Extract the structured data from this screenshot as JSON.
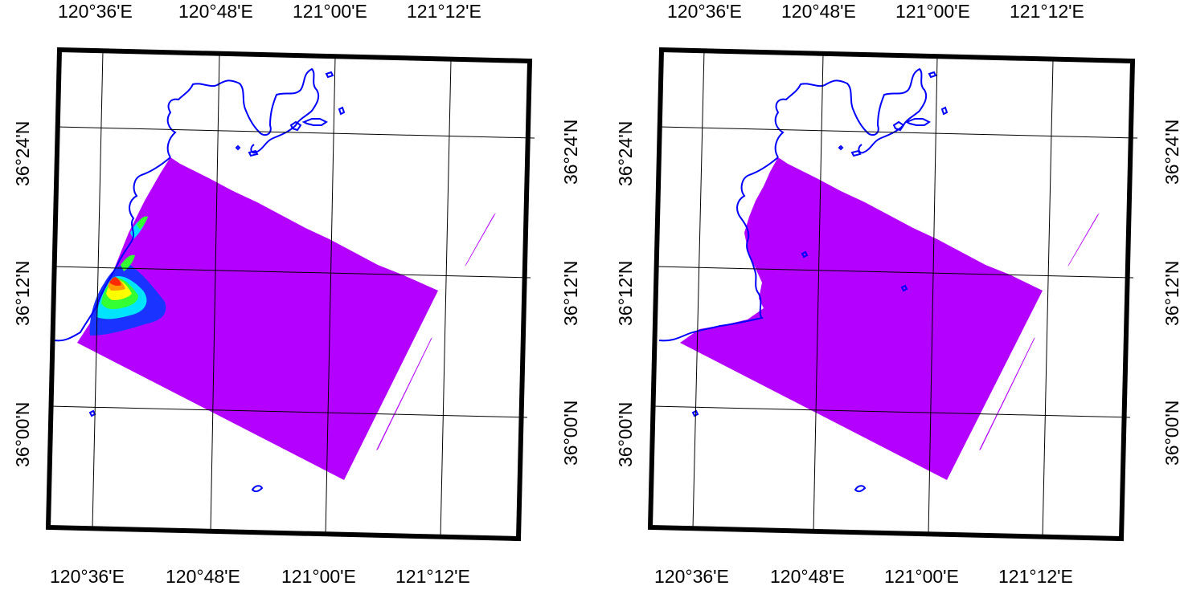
{
  "colors": {
    "frame": "#000000",
    "grid": "#000000",
    "coastline": "#0000ff",
    "field": "#b400ff",
    "hotspot_red": "#ff2a00",
    "hotspot_orange": "#ff9a00",
    "hotspot_yellow": "#ffff00",
    "hotspot_green": "#33ff33",
    "hotspot_cyan": "#00e5ff",
    "hotspot_blue": "#1a33ff"
  },
  "maps": [
    {
      "id": "left",
      "top_lon_labels": [
        "120°36'E",
        "120°48'E",
        "121°00'E",
        "121°12'E"
      ],
      "bottom_lon_labels": [
        "120°36'E",
        "120°48'E",
        "121°00'E",
        "121°12'E"
      ],
      "left_lat_labels": [
        "36°24'N",
        "36°12'N",
        "36°00'N"
      ],
      "right_lat_labels": [
        "36°24'N",
        "36°12'N",
        "36°00'N"
      ],
      "has_hotspot": true
    },
    {
      "id": "right",
      "top_lon_labels": [
        "120°36'E",
        "120°48'E",
        "121°00'E",
        "121°12'E"
      ],
      "bottom_lon_labels": [
        "120°36'E",
        "120°48'E",
        "121°00'E",
        "121°12'E"
      ],
      "left_lat_labels": [
        "36°24'N",
        "36°12'N",
        "36°00'N"
      ],
      "right_lat_labels": [
        "36°24'N",
        "36°12'N",
        "36°00'N"
      ],
      "has_hotspot": false
    }
  ]
}
